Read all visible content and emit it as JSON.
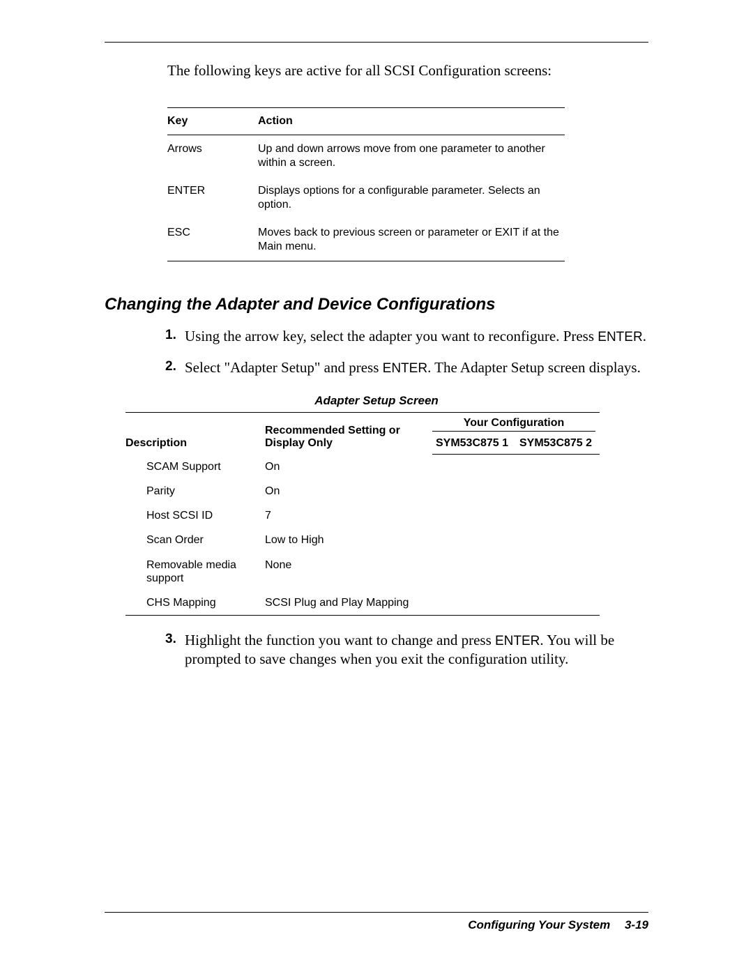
{
  "intro": "The following keys are active for all SCSI Configuration screens:",
  "keys_table": {
    "headers": [
      "Key",
      "Action"
    ],
    "rows": [
      [
        "Arrows",
        "Up and down arrows move from one parameter to another within a screen."
      ],
      [
        "ENTER",
        "Displays options for a configurable parameter. Selects an option."
      ],
      [
        "ESC",
        "Moves back to previous screen or parameter or EXIT if at the Main menu."
      ]
    ]
  },
  "section_heading": "Changing the Adapter and Device Configurations",
  "steps": {
    "s1_a": "Using the arrow key, select the adapter you want to reconfigure. Press ",
    "s1_key": "ENTER",
    "s1_b": ".",
    "s2_a": "Select \"Adapter Setup\" and press ",
    "s2_key": "ENTER",
    "s2_b": ". The Adapter Setup screen displays.",
    "s3_a": "Highlight the function you want to change and press ",
    "s3_key": "ENTER",
    "s3_b": ". You will be prompted to save changes when you exit the configuration utility."
  },
  "setup_caption": "Adapter Setup Screen",
  "setup_table": {
    "header": {
      "description": "Description",
      "recommended": "Recommended Setting or Display Only",
      "your_config": "Your Configuration",
      "col1": "SYM53C875 1",
      "col2": "SYM53C875 2"
    },
    "rows": [
      [
        "SCAM Support",
        "On",
        "",
        ""
      ],
      [
        "Parity",
        "On",
        "",
        ""
      ],
      [
        "Host SCSI ID",
        "7",
        "",
        ""
      ],
      [
        "Scan Order",
        "Low to High",
        "",
        ""
      ],
      [
        "Removable media support",
        "None",
        "",
        ""
      ],
      [
        "CHS Mapping",
        "SCSI Plug and Play Mapping",
        "",
        ""
      ]
    ]
  },
  "footer": {
    "title": "Configuring Your System",
    "page": "3-19"
  }
}
